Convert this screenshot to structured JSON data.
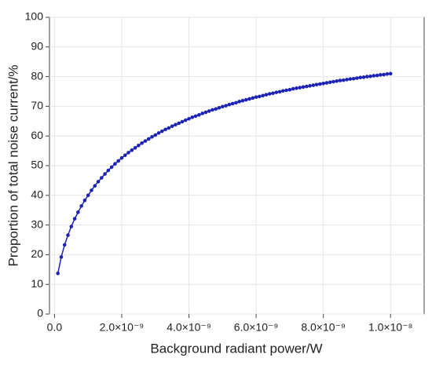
{
  "chart_data": {
    "type": "line",
    "xlabel": "Background radiant power/W",
    "ylabel": "Proportion of total noise current/%",
    "x": [
      1e-10,
      2e-10,
      3e-10,
      4e-10,
      5e-10,
      6e-10,
      7e-10,
      8e-10,
      9e-10,
      1e-09,
      1.1e-09,
      1.2e-09,
      1.3e-09,
      1.4e-09,
      1.5e-09,
      1.6e-09,
      1.7e-09,
      1.8e-09,
      1.9e-09,
      2e-09,
      2.1e-09,
      2.2e-09,
      2.3e-09,
      2.4e-09,
      2.5e-09,
      2.6e-09,
      2.7e-09,
      2.8e-09,
      2.9e-09,
      3e-09,
      3.1e-09,
      3.2e-09,
      3.3e-09,
      3.4e-09,
      3.5e-09,
      3.6e-09,
      3.7e-09,
      3.8e-09,
      3.9e-09,
      4e-09,
      4.1e-09,
      4.2e-09,
      4.3e-09,
      4.4e-09,
      4.5e-09,
      4.6e-09,
      4.7e-09,
      4.8e-09,
      4.9e-09,
      5e-09,
      5.1e-09,
      5.2e-09,
      5.3e-09,
      5.4e-09,
      5.5e-09,
      5.6e-09,
      5.7e-09,
      5.8e-09,
      5.9e-09,
      6e-09,
      6.1e-09,
      6.2e-09,
      6.3e-09,
      6.4e-09,
      6.5e-09,
      6.6e-09,
      6.7e-09,
      6.8e-09,
      6.9e-09,
      7e-09,
      7.1e-09,
      7.2e-09,
      7.3e-09,
      7.4e-09,
      7.5e-09,
      7.6e-09,
      7.7e-09,
      7.8e-09,
      7.9e-09,
      8e-09,
      8.1e-09,
      8.2e-09,
      8.3e-09,
      8.4e-09,
      8.5e-09,
      8.6e-09,
      8.7e-09,
      8.8e-09,
      8.9e-09,
      9e-09,
      9.1e-09,
      9.2e-09,
      9.3e-09,
      9.4e-09,
      9.5e-09,
      9.6e-09,
      9.7e-09,
      9.8e-09,
      9.9e-09,
      1e-08
    ],
    "series": [
      {
        "color": "#1c22b4",
        "values": [
          13.7,
          19.2,
          23.3,
          26.6,
          29.5,
          32.1,
          34.3,
          36.4,
          38.3,
          40.0,
          41.7,
          43.2,
          44.6,
          45.9,
          47.2,
          48.4,
          49.5,
          50.6,
          51.6,
          52.6,
          53.5,
          54.4,
          55.2,
          56.0,
          56.8,
          57.6,
          58.3,
          59.0,
          59.7,
          60.3,
          61.0,
          61.6,
          62.2,
          62.7,
          63.3,
          63.8,
          64.3,
          64.8,
          65.3,
          65.8,
          66.3,
          66.7,
          67.1,
          67.6,
          68.0,
          68.4,
          68.8,
          69.1,
          69.5,
          69.9,
          70.2,
          70.6,
          70.9,
          71.2,
          71.6,
          71.9,
          72.2,
          72.5,
          72.8,
          73.1,
          73.3,
          73.6,
          73.9,
          74.2,
          74.4,
          74.7,
          74.9,
          75.2,
          75.4,
          75.6,
          75.9,
          76.1,
          76.3,
          76.5,
          76.7,
          76.9,
          77.1,
          77.3,
          77.5,
          77.7,
          77.9,
          78.1,
          78.3,
          78.5,
          78.7,
          78.8,
          79.0,
          79.2,
          79.3,
          79.5,
          79.7,
          79.8,
          80.0,
          80.1,
          80.3,
          80.4,
          80.6,
          80.7,
          80.9,
          81.0
        ]
      }
    ],
    "xlim": [
      -1.5e-10,
      1.1e-08
    ],
    "ylim": [
      0,
      100
    ],
    "xticks": [
      {
        "value": 0,
        "label": "0.0"
      },
      {
        "value": 2e-09,
        "label": "2.0×10⁻⁹"
      },
      {
        "value": 4e-09,
        "label": "4.0×10⁻⁹"
      },
      {
        "value": 6e-09,
        "label": "6.0×10⁻⁹"
      },
      {
        "value": 8e-09,
        "label": "8.0×10⁻⁹"
      },
      {
        "value": 1e-08,
        "label": "1.0×10⁻⁸"
      }
    ],
    "yticks": [
      0,
      10,
      20,
      30,
      40,
      50,
      60,
      70,
      80,
      90,
      100
    ],
    "grid": true
  }
}
